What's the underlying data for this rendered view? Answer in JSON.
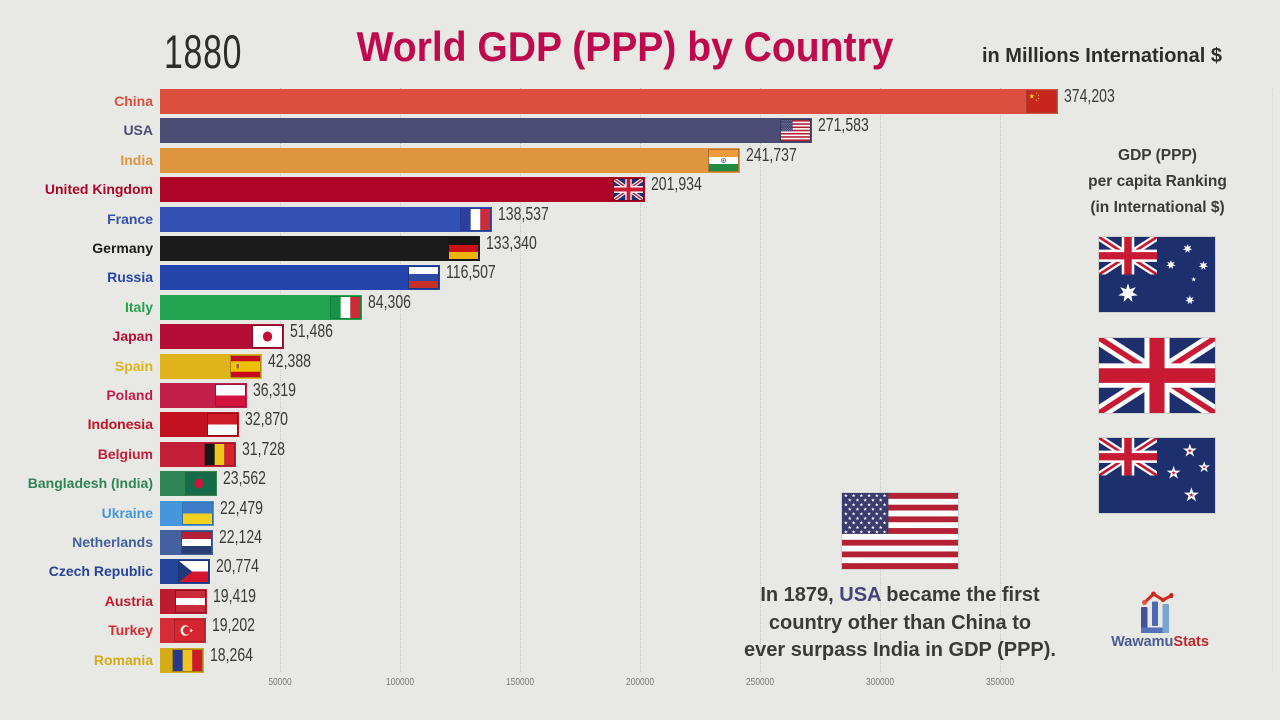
{
  "page": {
    "background": "#E8E8E4"
  },
  "header": {
    "year": "1880",
    "title": "World GDP (PPP) by Country",
    "units_note": "in Millions International $"
  },
  "chart_data": {
    "type": "bar",
    "orientation": "horizontal",
    "title": "World GDP (PPP) by Country",
    "units": "Millions International $",
    "year": "1880",
    "xlim": [
      0,
      466000
    ],
    "grid": true,
    "x_ticks": [
      {
        "value": 50000,
        "label": "50000"
      },
      {
        "value": 100000,
        "label": "100000"
      },
      {
        "value": 150000,
        "label": "150000"
      },
      {
        "value": 200000,
        "label": "200000"
      },
      {
        "value": 250000,
        "label": "250000"
      },
      {
        "value": 300000,
        "label": "300000"
      },
      {
        "value": 350000,
        "label": "350000"
      }
    ],
    "bars": [
      {
        "rank": 1,
        "country": "China",
        "value": 374203,
        "display": "374,203",
        "color": "#DC4F3E",
        "flag": "cn"
      },
      {
        "rank": 2,
        "country": "USA",
        "value": 271583,
        "display": "271,583",
        "color": "#4D4C74",
        "flag": "us"
      },
      {
        "rank": 3,
        "country": "India",
        "value": 241737,
        "display": "241,737",
        "color": "#DF953D",
        "flag": "in"
      },
      {
        "rank": 4,
        "country": "United Kingdom",
        "value": 201934,
        "display": "201,934",
        "color": "#AE0527",
        "flag": "gb"
      },
      {
        "rank": 5,
        "country": "France",
        "value": 138537,
        "display": "138,537",
        "color": "#3351B4",
        "flag": "fr"
      },
      {
        "rank": 6,
        "country": "Germany",
        "value": 133340,
        "display": "133,340",
        "color": "#1B1B1B",
        "flag": "de"
      },
      {
        "rank": 7,
        "country": "Russia",
        "value": 116507,
        "display": "116,507",
        "color": "#2446AC",
        "flag": "ru"
      },
      {
        "rank": 8,
        "country": "Italy",
        "value": 84306,
        "display": "84,306",
        "color": "#22A34F",
        "flag": "it"
      },
      {
        "rank": 9,
        "country": "Japan",
        "value": 51486,
        "display": "51,486",
        "color": "#B30D36",
        "flag": "jp"
      },
      {
        "rank": 10,
        "country": "Spain",
        "value": 42388,
        "display": "42,388",
        "color": "#DFB41A",
        "flag": "es"
      },
      {
        "rank": 11,
        "country": "Poland",
        "value": 36319,
        "display": "36,319",
        "color": "#C21E4B",
        "flag": "pl"
      },
      {
        "rank": 12,
        "country": "Indonesia",
        "value": 32870,
        "display": "32,870",
        "color": "#C3111F",
        "flag": "id"
      },
      {
        "rank": 13,
        "country": "Belgium",
        "value": 31728,
        "display": "31,728",
        "color": "#C21E38",
        "flag": "be"
      },
      {
        "rank": 14,
        "country": "Bangladesh (India)",
        "value": 23562,
        "display": "23,562",
        "color": "#2F8556",
        "flag": "bd"
      },
      {
        "rank": 15,
        "country": "Ukraine",
        "value": 22479,
        "display": "22,479",
        "color": "#4497DC",
        "flag": "ua"
      },
      {
        "rank": 16,
        "country": "Netherlands",
        "value": 22124,
        "display": "22,124",
        "color": "#42619E",
        "flag": "nl"
      },
      {
        "rank": 17,
        "country": "Czech Republic",
        "value": 20774,
        "display": "20,774",
        "color": "#24459C",
        "flag": "cz"
      },
      {
        "rank": 18,
        "country": "Austria",
        "value": 19419,
        "display": "19,419",
        "color": "#BE1A30",
        "flag": "at"
      },
      {
        "rank": 19,
        "country": "Turkey",
        "value": 19202,
        "display": "19,202",
        "color": "#D62C35",
        "flag": "tr"
      },
      {
        "rank": 20,
        "country": "Romania",
        "value": 18264,
        "display": "18,264",
        "color": "#D2AB16",
        "flag": "ro"
      }
    ]
  },
  "side_panel": {
    "heading": [
      "GDP (PPP)",
      "per capita Ranking",
      "(in International $)"
    ],
    "ranking_flags": [
      {
        "country": "Australia",
        "flag": "au"
      },
      {
        "country": "United Kingdom",
        "flag": "gb"
      },
      {
        "country": "New Zealand",
        "flag": "nz"
      }
    ]
  },
  "annotation": {
    "flag": "us",
    "flag_country": "United States",
    "highlight_color": "#45437A",
    "lines": [
      {
        "segments": [
          {
            "text": "In 1879, "
          },
          {
            "text": "USA",
            "highlight": true
          },
          {
            "text": " became the first"
          }
        ]
      },
      {
        "segments": [
          {
            "text": "country other than China to"
          }
        ]
      },
      {
        "segments": [
          {
            "text": "ever surpass India in GDP (PPP)."
          }
        ]
      }
    ]
  },
  "logo": {
    "brand_primary": "Wawamu",
    "brand_secondary": "Stats",
    "primary_color": "#4A5B94",
    "secondary_color": "#C2272E"
  }
}
